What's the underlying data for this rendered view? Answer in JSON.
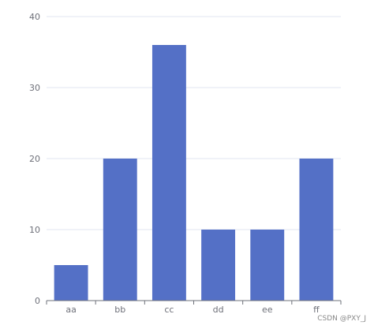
{
  "chart_data": {
    "type": "bar",
    "categories": [
      "aa",
      "bb",
      "cc",
      "dd",
      "ee",
      "ff"
    ],
    "values": [
      5,
      20,
      36,
      10,
      10,
      20
    ],
    "title": "",
    "xlabel": "",
    "ylabel": "",
    "ylim": [
      0,
      40
    ],
    "yticks": [
      0,
      10,
      20,
      30,
      40
    ],
    "grid": true,
    "bar_color": "#5470c6"
  },
  "watermark": "CSDN @PXY_J"
}
